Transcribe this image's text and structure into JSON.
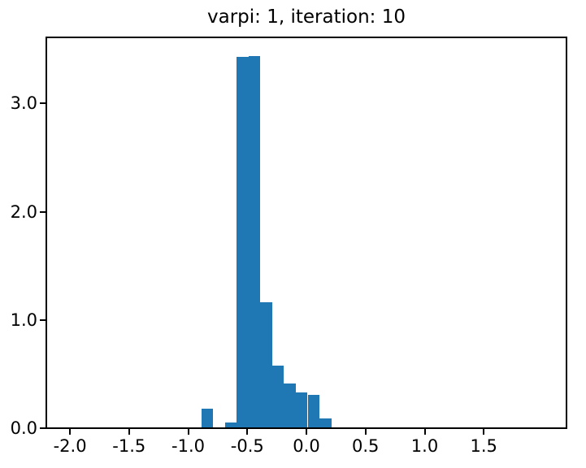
{
  "figure": {
    "title": "varpi: 1, iteration: 10"
  },
  "colors": {
    "bar": "#1f77b4",
    "axis": "#000000",
    "text": "#000000",
    "background": "#ffffff"
  },
  "chart_data": {
    "type": "bar",
    "subtype": "histogram",
    "title": "varpi: 1, iteration: 10",
    "xlabel": "",
    "ylabel": "",
    "xlim": [
      -2.2,
      2.2
    ],
    "ylim": [
      0,
      3.61
    ],
    "grid": false,
    "legend": null,
    "bin_edges": [
      -0.89,
      -0.79,
      -0.69,
      -0.59,
      -0.49,
      -0.39,
      -0.29,
      -0.19,
      -0.09,
      0.01,
      0.11,
      0.21
    ],
    "heights": [
      0.18,
      0,
      0.05,
      3.43,
      3.44,
      1.16,
      0.58,
      0.41,
      0.33,
      0.31,
      0.09
    ],
    "xticks": [
      -2.0,
      -1.5,
      -1.0,
      -0.5,
      0.0,
      0.5,
      1.0,
      1.5
    ],
    "xtick_labels": [
      "-2.0",
      "-1.5",
      "-1.0",
      "-0.5",
      "0.0",
      "0.5",
      "1.0",
      "1.5"
    ],
    "yticks": [
      0.0,
      1.0,
      2.0,
      3.0
    ],
    "ytick_labels": [
      "0.0",
      "1.0",
      "2.0",
      "3.0"
    ]
  }
}
